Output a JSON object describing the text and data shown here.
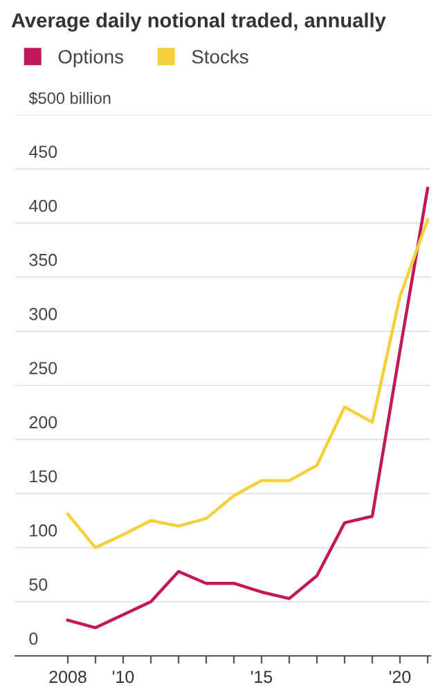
{
  "chart_data": {
    "type": "line",
    "title": "Average daily notional traded, annually",
    "x": [
      2008,
      2009,
      2010,
      2011,
      2012,
      2013,
      2014,
      2015,
      2016,
      2017,
      2018,
      2019,
      2020,
      2021
    ],
    "series": [
      {
        "name": "Options",
        "color": "#c2185b",
        "values": [
          33,
          26,
          38,
          50,
          78,
          67,
          67,
          59,
          53,
          74,
          123,
          129,
          282,
          432
        ]
      },
      {
        "name": "Stocks",
        "color": "#f5d03b",
        "values": [
          131,
          100,
          112,
          125,
          120,
          127,
          148,
          162,
          162,
          176,
          230,
          216,
          332,
          403
        ]
      }
    ],
    "xlim": [
      2006.1,
      2021.1
    ],
    "xticks": [
      2008,
      {
        "value": 2009,
        "label": null
      },
      {
        "value": 2010,
        "label": "'10"
      },
      {
        "value": 2011,
        "label": null
      },
      {
        "value": 2012,
        "label": null
      },
      {
        "value": 2013,
        "label": null
      },
      {
        "value": 2014,
        "label": null
      },
      {
        "value": 2015,
        "label": "'15"
      },
      {
        "value": 2016,
        "label": null
      },
      {
        "value": 2017,
        "label": null
      },
      {
        "value": 2018,
        "label": null
      },
      {
        "value": 2019,
        "label": null
      },
      {
        "value": 2020,
        "label": "'20"
      },
      {
        "value": 2021,
        "label": null
      }
    ],
    "ylim": [
      0,
      500
    ],
    "yticks": [
      0,
      50,
      100,
      150,
      200,
      250,
      300,
      350,
      400,
      450,
      {
        "value": 500,
        "label": "$500 billion"
      }
    ],
    "grid": "y",
    "legend": "top left",
    "marker": "none",
    "line_style": "solid"
  }
}
